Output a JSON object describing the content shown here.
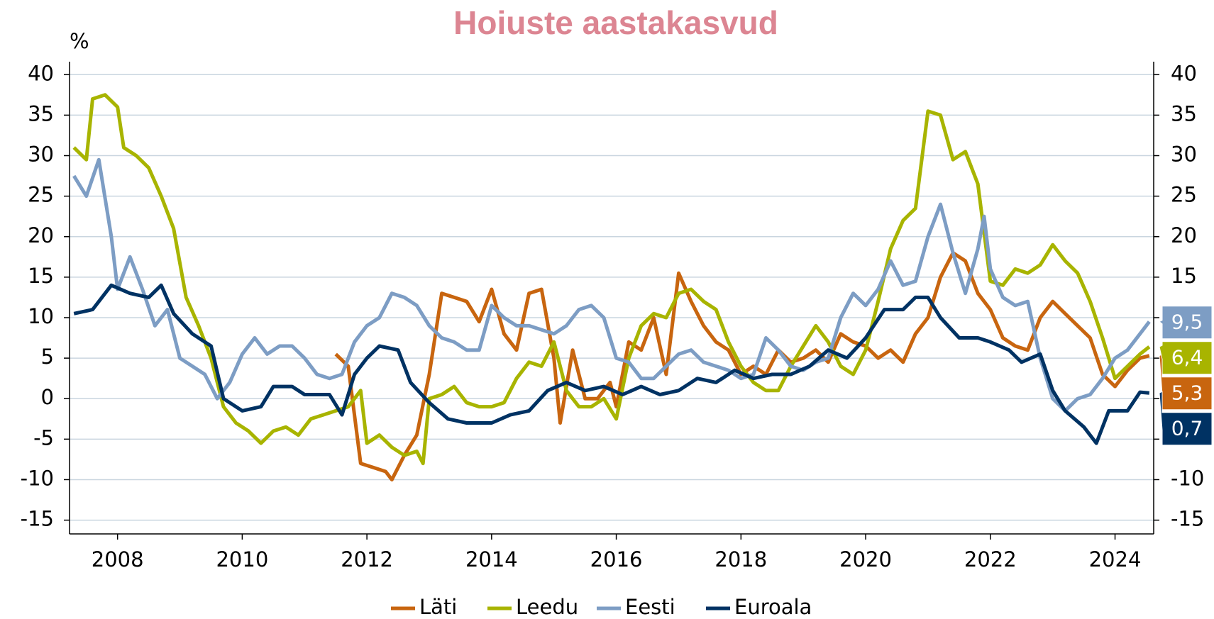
{
  "chart_data": {
    "type": "line",
    "title": "Hoiuste aastakasvud",
    "y_label": "%",
    "xlim": [
      2007.23,
      2024.62
    ],
    "ylim": [
      -16.7,
      41.6
    ],
    "xticks": [
      2008,
      2010,
      2012,
      2014,
      2016,
      2018,
      2020,
      2022,
      2024
    ],
    "yticks": [
      -15,
      -10,
      -5,
      0,
      5,
      10,
      15,
      20,
      25,
      30,
      35,
      40
    ],
    "grid": true,
    "legend": "bottom",
    "series": [
      {
        "name": "Läti",
        "color": "#c8650f",
        "end_label": "5,3",
        "x": [
          2011.5,
          2011.7,
          2011.9,
          2012.1,
          2012.3,
          2012.4,
          2012.6,
          2012.8,
          2013.0,
          2013.2,
          2013.4,
          2013.6,
          2013.8,
          2014.0,
          2014.2,
          2014.4,
          2014.6,
          2014.8,
          2015.0,
          2015.1,
          2015.3,
          2015.5,
          2015.7,
          2015.9,
          2016.0,
          2016.2,
          2016.4,
          2016.6,
          2016.8,
          2017.0,
          2017.2,
          2017.4,
          2017.6,
          2017.8,
          2018.0,
          2018.2,
          2018.4,
          2018.6,
          2018.8,
          2019.0,
          2019.2,
          2019.4,
          2019.6,
          2019.8,
          2020.0,
          2020.2,
          2020.4,
          2020.6,
          2020.8,
          2021.0,
          2021.2,
          2021.4,
          2021.6,
          2021.8,
          2022.0,
          2022.2,
          2022.4,
          2022.6,
          2022.8,
          2023.0,
          2023.2,
          2023.4,
          2023.6,
          2023.8,
          2024.0,
          2024.2,
          2024.4,
          2024.55
        ],
        "values": [
          5.5,
          4,
          -8,
          -8.5,
          -9,
          -10,
          -7,
          -4.5,
          3,
          13,
          12.5,
          12,
          9.5,
          13.5,
          8,
          6,
          13,
          13.5,
          5,
          -3,
          6,
          0,
          0,
          2,
          -1,
          7,
          6,
          10,
          3,
          15.5,
          12,
          9,
          7,
          6,
          3,
          4,
          3,
          6,
          4.5,
          5,
          6,
          4.5,
          8,
          7,
          6.5,
          5,
          6,
          4.5,
          8,
          10,
          15,
          18,
          17,
          13,
          11,
          7.5,
          6.5,
          6,
          10,
          12,
          10.5,
          9,
          7.5,
          3,
          1.5,
          3.5,
          5,
          5.3
        ]
      },
      {
        "name": "Leedu",
        "color": "#a8b400",
        "end_label": "6,4",
        "x": [
          2007.3,
          2007.5,
          2007.6,
          2007.8,
          2008.0,
          2008.1,
          2008.3,
          2008.5,
          2008.7,
          2008.9,
          2009.1,
          2009.3,
          2009.5,
          2009.7,
          2009.9,
          2010.1,
          2010.3,
          2010.5,
          2010.7,
          2010.9,
          2011.1,
          2011.3,
          2011.5,
          2011.7,
          2011.9,
          2012.0,
          2012.2,
          2012.4,
          2012.6,
          2012.8,
          2012.9,
          2013.0,
          2013.2,
          2013.4,
          2013.6,
          2013.8,
          2014.0,
          2014.2,
          2014.4,
          2014.6,
          2014.8,
          2015.0,
          2015.2,
          2015.4,
          2015.6,
          2015.8,
          2016.0,
          2016.2,
          2016.4,
          2016.6,
          2016.8,
          2017.0,
          2017.2,
          2017.4,
          2017.6,
          2017.8,
          2018.0,
          2018.2,
          2018.4,
          2018.6,
          2018.8,
          2019.0,
          2019.2,
          2019.4,
          2019.6,
          2019.8,
          2020.0,
          2020.2,
          2020.4,
          2020.6,
          2020.8,
          2021.0,
          2021.2,
          2021.4,
          2021.6,
          2021.8,
          2022.0,
          2022.2,
          2022.4,
          2022.6,
          2022.8,
          2023.0,
          2023.2,
          2023.4,
          2023.6,
          2023.8,
          2024.0,
          2024.2,
          2024.4,
          2024.55
        ],
        "values": [
          31,
          29.5,
          37,
          37.5,
          36,
          31,
          30,
          28.5,
          25,
          21,
          12.5,
          9,
          5,
          -1,
          -3,
          -4,
          -5.5,
          -4,
          -3.5,
          -4.5,
          -2.5,
          -2,
          -1.5,
          -1,
          1,
          -5.5,
          -4.5,
          -6,
          -7,
          -6.5,
          -8,
          0,
          0.5,
          1.5,
          -0.5,
          -1,
          -1,
          -0.5,
          2.5,
          4.5,
          4,
          7,
          1,
          -1,
          -1,
          0,
          -2.5,
          5,
          9,
          10.5,
          10,
          13,
          13.5,
          12,
          11,
          7,
          4,
          2,
          1,
          1,
          4,
          6.5,
          9,
          7,
          4,
          3,
          6,
          12,
          18.5,
          22,
          23.5,
          35.5,
          35,
          29.5,
          30.5,
          26.5,
          14.5,
          14,
          16,
          15.5,
          16.5,
          19,
          17,
          15.5,
          12,
          7.5,
          2.5,
          4,
          5.5,
          6.4
        ]
      },
      {
        "name": "Eesti",
        "color": "#7d9dc4",
        "end_label": "9,5",
        "x": [
          2007.3,
          2007.5,
          2007.7,
          2007.9,
          2008.0,
          2008.2,
          2008.4,
          2008.6,
          2008.8,
          2009.0,
          2009.2,
          2009.4,
          2009.6,
          2009.8,
          2010.0,
          2010.2,
          2010.4,
          2010.6,
          2010.8,
          2011.0,
          2011.2,
          2011.4,
          2011.6,
          2011.8,
          2012.0,
          2012.2,
          2012.4,
          2012.6,
          2012.8,
          2013.0,
          2013.2,
          2013.4,
          2013.6,
          2013.8,
          2014.0,
          2014.2,
          2014.4,
          2014.6,
          2014.8,
          2015.0,
          2015.2,
          2015.4,
          2015.6,
          2015.8,
          2016.0,
          2016.2,
          2016.4,
          2016.6,
          2016.8,
          2017.0,
          2017.2,
          2017.4,
          2017.6,
          2017.8,
          2018.0,
          2018.2,
          2018.4,
          2018.6,
          2018.8,
          2019.0,
          2019.2,
          2019.4,
          2019.6,
          2019.8,
          2020.0,
          2020.2,
          2020.4,
          2020.6,
          2020.8,
          2021.0,
          2021.2,
          2021.4,
          2021.6,
          2021.8,
          2021.9,
          2022.0,
          2022.2,
          2022.4,
          2022.6,
          2022.8,
          2023.0,
          2023.2,
          2023.4,
          2023.6,
          2023.8,
          2024.0,
          2024.2,
          2024.4,
          2024.55
        ],
        "values": [
          27.5,
          25,
          29.5,
          20,
          13.5,
          17.5,
          13.5,
          9,
          11,
          5,
          4,
          3,
          0,
          2,
          5.5,
          7.5,
          5.5,
          6.5,
          6.5,
          5,
          3,
          2.5,
          3,
          7,
          9,
          10,
          13,
          12.5,
          11.5,
          9,
          7.5,
          7,
          6,
          6,
          11.5,
          10,
          9,
          9,
          8.5,
          8,
          9,
          11,
          11.5,
          10,
          5,
          4.5,
          2.5,
          2.5,
          4,
          5.5,
          6,
          4.5,
          4,
          3.5,
          2.5,
          3,
          7.5,
          6,
          4,
          3.5,
          4.5,
          5,
          10,
          13,
          11.5,
          13.5,
          17,
          14,
          14.5,
          20,
          24,
          18,
          13,
          18.5,
          22.5,
          16,
          12.5,
          11.5,
          12,
          5,
          0,
          -1.5,
          0,
          0.5,
          2.5,
          5,
          6,
          8,
          9.5
        ]
      },
      {
        "name": "Euroala",
        "color": "#003263",
        "end_label": "0,7",
        "x": [
          2007.3,
          2007.6,
          2007.9,
          2008.2,
          2008.5,
          2008.7,
          2008.9,
          2009.2,
          2009.5,
          2009.7,
          2010.0,
          2010.3,
          2010.5,
          2010.8,
          2011.0,
          2011.4,
          2011.6,
          2011.8,
          2012.0,
          2012.2,
          2012.5,
          2012.7,
          2013.0,
          2013.3,
          2013.6,
          2014.0,
          2014.3,
          2014.6,
          2014.9,
          2015.2,
          2015.5,
          2015.8,
          2016.1,
          2016.4,
          2016.7,
          2017.0,
          2017.3,
          2017.6,
          2017.9,
          2018.2,
          2018.5,
          2018.8,
          2019.1,
          2019.4,
          2019.7,
          2020.0,
          2020.3,
          2020.6,
          2020.8,
          2021.0,
          2021.2,
          2021.5,
          2021.8,
          2022.0,
          2022.3,
          2022.5,
          2022.8,
          2023.0,
          2023.2,
          2023.5,
          2023.7,
          2023.9,
          2024.2,
          2024.4,
          2024.55
        ],
        "values": [
          10.5,
          11,
          14,
          13,
          12.5,
          14,
          10.5,
          8,
          6.5,
          0,
          -1.5,
          -1,
          1.5,
          1.5,
          0.5,
          0.5,
          -2,
          3,
          5,
          6.5,
          6,
          2,
          -0.5,
          -2.5,
          -3,
          -3,
          -2,
          -1.5,
          1,
          2,
          1,
          1.5,
          0.5,
          1.5,
          0.5,
          1,
          2.5,
          2,
          3.5,
          2.5,
          3,
          3,
          4,
          6,
          5,
          7.5,
          11,
          11,
          12.5,
          12.5,
          10,
          7.5,
          7.5,
          7,
          6,
          4.5,
          5.5,
          1,
          -1.5,
          -3.5,
          -5.5,
          -1.5,
          -1.5,
          0.8,
          0.7
        ]
      }
    ]
  }
}
